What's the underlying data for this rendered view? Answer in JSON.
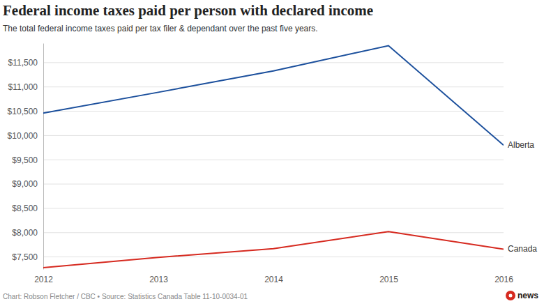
{
  "chart_data": {
    "type": "line",
    "title": "Federal income taxes paid per person with declared income",
    "subtitle": "The total federal income taxes paid per tax filer & dependant over the past five years.",
    "source": "Chart: Robson Fletcher / CBC • Source: Statistics Canada Table 11-10-0034-01",
    "brand": "news",
    "x": [
      2012,
      2013,
      2014,
      2015,
      2016
    ],
    "xlim": [
      2012,
      2016
    ],
    "xticks": [
      2012,
      2013,
      2014,
      2015,
      2016
    ],
    "ylim": [
      7250,
      11900
    ],
    "yticks": [
      {
        "value": 7500,
        "label": "$7,500"
      },
      {
        "value": 8000,
        "label": "$8,000"
      },
      {
        "value": 8500,
        "label": "$8,500"
      },
      {
        "value": 9000,
        "label": "$9,000"
      },
      {
        "value": 9500,
        "label": "$9,500"
      },
      {
        "value": 10000,
        "label": "$10,000"
      },
      {
        "value": 10500,
        "label": "$10,500"
      },
      {
        "value": 11000,
        "label": "$11,000"
      },
      {
        "value": 11500,
        "label": "$11,500"
      }
    ],
    "grid": true,
    "series": [
      {
        "name": "Alberta",
        "color": "#1b4f9c",
        "values": [
          10460,
          10890,
          11330,
          11850,
          9800
        ]
      },
      {
        "name": "Canada",
        "color": "#d62a20",
        "values": [
          7280,
          7490,
          7670,
          8020,
          7660
        ]
      }
    ]
  }
}
